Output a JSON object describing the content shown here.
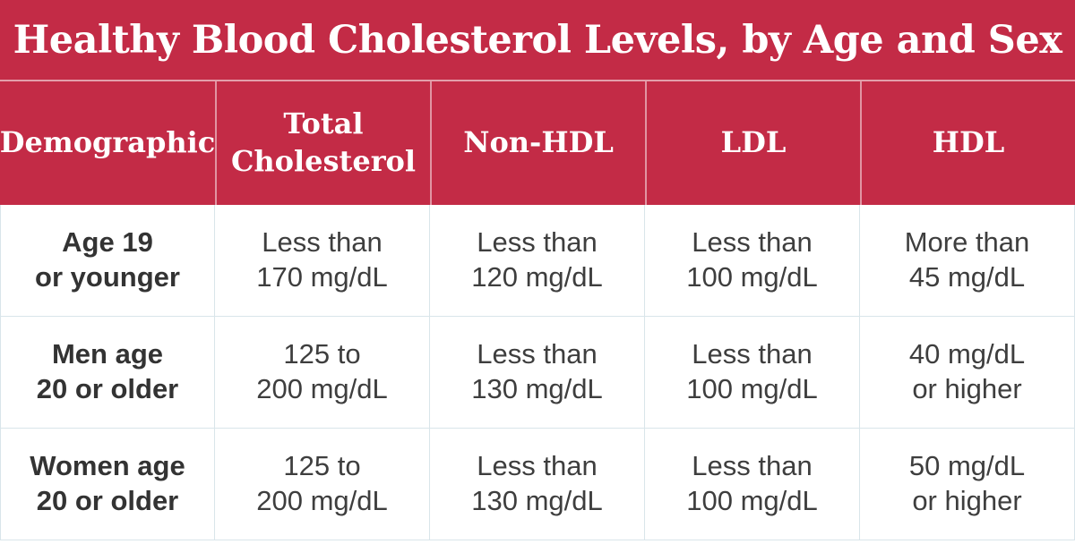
{
  "title": "Healthy Blood Cholesterol Levels, by Age and Sex",
  "colors": {
    "band_red": "#C32B46",
    "divider_on_red": "#DB93A1",
    "body_grid": "#D9E5EA",
    "title_text": "#FFFFFF",
    "value_text": "#3E3E3E",
    "label_text": "#333333"
  },
  "table": {
    "headers": [
      "Demographic",
      "Total\nCholesterol",
      "Non-HDL",
      "LDL",
      "HDL"
    ],
    "rows": [
      {
        "cells": [
          "Age 19\nor younger",
          "Less than\n170 mg/dL",
          "Less than\n120 mg/dL",
          "Less than\n100 mg/dL",
          "More than\n45 mg/dL"
        ]
      },
      {
        "cells": [
          "Men age\n20 or older",
          "125 to\n200 mg/dL",
          "Less than\n130 mg/dL",
          "Less than\n100 mg/dL",
          "40 mg/dL\nor higher"
        ]
      },
      {
        "cells": [
          "Women age\n20 or older",
          "125 to\n200 mg/dL",
          "Less than\n130 mg/dL",
          "Less than\n100 mg/dL",
          "50 mg/dL\nor higher"
        ]
      }
    ]
  },
  "chart_data": {
    "type": "table",
    "title": "Healthy Blood Cholesterol Levels, by Age and Sex",
    "columns": [
      "Demographic",
      "Total Cholesterol",
      "Non-HDL",
      "LDL",
      "HDL"
    ],
    "rows": [
      [
        "Age 19 or younger",
        "Less than 170 mg/dL",
        "Less than 120 mg/dL",
        "Less than 100 mg/dL",
        "More than 45 mg/dL"
      ],
      [
        "Men age 20 or older",
        "125 to 200 mg/dL",
        "Less than 130 mg/dL",
        "Less than 100 mg/dL",
        "40 mg/dL or higher"
      ],
      [
        "Women age 20 or older",
        "125 to 200 mg/dL",
        "Less than 130 mg/dL",
        "Less than 100 mg/dL",
        "50 mg/dL or higher"
      ]
    ]
  }
}
